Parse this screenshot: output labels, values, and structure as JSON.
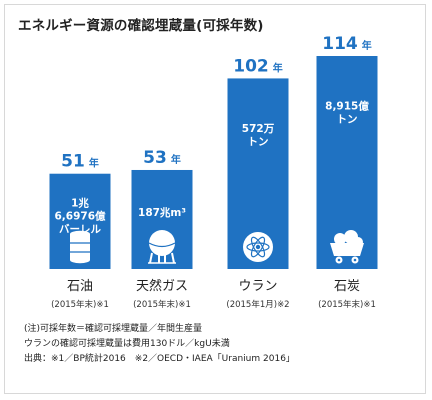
{
  "title": "エネルギー資源の確認埋蔵量(可採年数)",
  "chart_data": {
    "type": "bar",
    "categories": [
      "石油",
      "天然ガス",
      "ウラン",
      "石炭"
    ],
    "values": [
      51,
      53,
      102,
      114
    ],
    "year_unit": "年",
    "source_notes": [
      "(2015年末)※1",
      "(2015年末)※1",
      "(2015年1月)※2",
      "(2015年末)※1"
    ],
    "reserves": [
      [
        "1兆",
        "6,6976億",
        "バーレル"
      ],
      [
        "187兆m³"
      ],
      [
        "572万",
        "トン"
      ],
      [
        "8,915億",
        "トン"
      ]
    ],
    "icons": [
      "oil-barrel-icon",
      "gas-tank-icon",
      "atom-icon",
      "coal-cart-icon"
    ],
    "bar_color": "#1f72c2",
    "value_color": "#1f72c2"
  },
  "notes": [
    "(注)可採年数＝確認可採埋蔵量／年間生産量",
    "ウランの確認可採埋蔵量は費用130ドル／kgU未満",
    "出典：※1／BP統計2016　※2／OECD・IAEA「Uranium 2016」"
  ]
}
